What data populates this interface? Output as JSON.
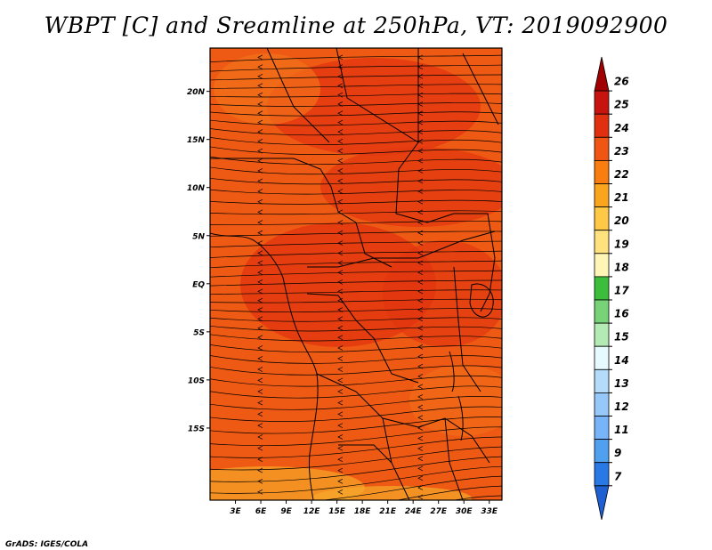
{
  "title": "WBPT [C] and Sreamline at 250hPa, VT: 2019092900",
  "credit": "GrADS: IGES/COLA",
  "map": {
    "lat_range": [
      -22.5,
      24.5
    ],
    "lon_range": [
      0.0,
      34.5
    ],
    "lat_ticks": [
      {
        "value": 20,
        "label": "20N"
      },
      {
        "value": 15,
        "label": "15N"
      },
      {
        "value": 10,
        "label": "10N"
      },
      {
        "value": 5,
        "label": "5N"
      },
      {
        "value": 0,
        "label": "EQ"
      },
      {
        "value": -5,
        "label": "5S"
      },
      {
        "value": -10,
        "label": "10S"
      },
      {
        "value": -15,
        "label": "15S"
      }
    ],
    "lon_ticks": [
      {
        "value": 3,
        "label": "3E"
      },
      {
        "value": 6,
        "label": "6E"
      },
      {
        "value": 9,
        "label": "9E"
      },
      {
        "value": 12,
        "label": "12E"
      },
      {
        "value": 15,
        "label": "15E"
      },
      {
        "value": 18,
        "label": "18E"
      },
      {
        "value": 21,
        "label": "21E"
      },
      {
        "value": 24,
        "label": "24E"
      },
      {
        "value": 27,
        "label": "27E"
      },
      {
        "value": 30,
        "label": "30E"
      },
      {
        "value": 33,
        "label": "33E"
      }
    ],
    "background_color": "#ee5a14"
  },
  "colorbar": {
    "labels": [
      "26",
      "25",
      "24",
      "23",
      "22",
      "21",
      "20",
      "19",
      "18",
      "17",
      "16",
      "15",
      "14",
      "13",
      "12",
      "11",
      "9",
      "7"
    ],
    "colors": [
      "#a00000",
      "#c8140f",
      "#e1300f",
      "#f05514",
      "#fa7d0f",
      "#faa51e",
      "#ffc846",
      "#ffe17d",
      "#fff5b4",
      "#3cbe3c",
      "#78d278",
      "#b4ebb4",
      "#e6faff",
      "#b4dcfa",
      "#96c8fa",
      "#78b4fa",
      "#50a0f0",
      "#2878e6",
      "#1e5fd2"
    ]
  }
}
